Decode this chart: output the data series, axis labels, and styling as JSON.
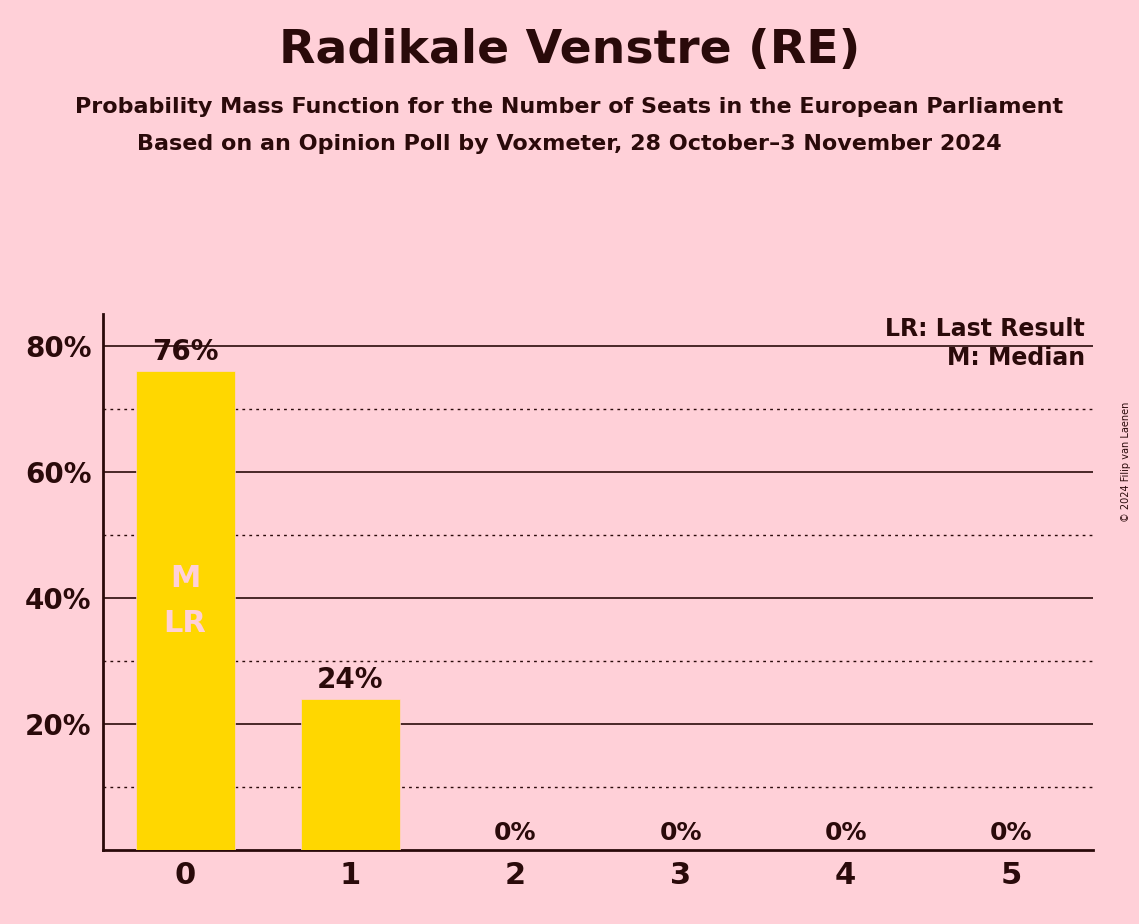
{
  "title": "Radikale Venstre (RE)",
  "subtitle1": "Probability Mass Function for the Number of Seats in the European Parliament",
  "subtitle2": "Based on an Opinion Poll by Voxmeter, 28 October–3 November 2024",
  "copyright": "© 2024 Filip van Laenen",
  "categories": [
    0,
    1,
    2,
    3,
    4,
    5
  ],
  "values": [
    0.76,
    0.24,
    0.0,
    0.0,
    0.0,
    0.0
  ],
  "bar_color": "#FFD700",
  "background_color": "#FFD0D8",
  "text_color": "#2A0A0A",
  "label_color_on_bar": "#FFD0D8",
  "median_seat": 0,
  "last_result_seat": 0,
  "ylim": [
    0,
    0.85
  ],
  "yticks": [
    0.2,
    0.4,
    0.6,
    0.8
  ],
  "ytick_labels": [
    "20%",
    "40%",
    "60%",
    "80%"
  ],
  "solid_lines": [
    0.2,
    0.4,
    0.6,
    0.8
  ],
  "dotted_lines": [
    0.1,
    0.3,
    0.5,
    0.7
  ],
  "legend_lr": "LR: Last Result",
  "legend_m": "M: Median",
  "bar_width": 0.6
}
